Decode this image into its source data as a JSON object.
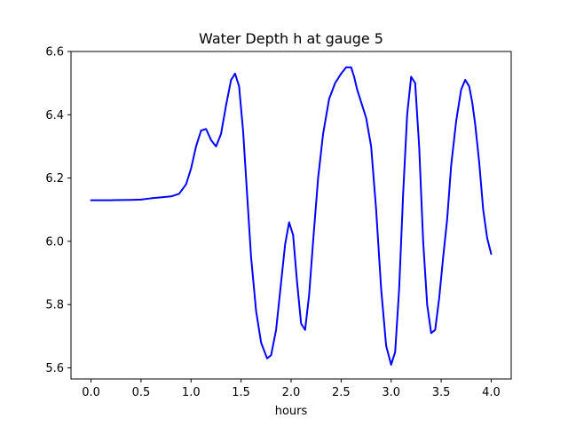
{
  "chart_data": {
    "type": "line",
    "title": "Water Depth h at gauge 5",
    "xlabel": "hours",
    "ylabel": "",
    "xlim": [
      -0.2,
      4.2
    ],
    "ylim": [
      5.565,
      6.6
    ],
    "xticks": [
      0.0,
      0.5,
      1.0,
      1.5,
      2.0,
      2.5,
      3.0,
      3.5,
      4.0
    ],
    "xtick_labels": [
      "0.0",
      "0.5",
      "1.0",
      "1.5",
      "2.0",
      "2.5",
      "3.0",
      "3.5",
      "4.0"
    ],
    "yticks": [
      5.6,
      5.8,
      6.0,
      6.2,
      6.4,
      6.6
    ],
    "ytick_labels": [
      "5.6",
      "5.8",
      "6.0",
      "6.2",
      "6.4",
      "6.6"
    ],
    "grid": false,
    "series": [
      {
        "color": "#0000ff",
        "x": [
          0.0,
          0.2,
          0.4,
          0.5,
          0.6,
          0.7,
          0.8,
          0.88,
          0.95,
          1.0,
          1.05,
          1.1,
          1.15,
          1.2,
          1.25,
          1.3,
          1.35,
          1.4,
          1.44,
          1.48,
          1.52,
          1.56,
          1.6,
          1.65,
          1.7,
          1.76,
          1.8,
          1.85,
          1.9,
          1.94,
          1.98,
          2.02,
          2.06,
          2.1,
          2.14,
          2.18,
          2.22,
          2.27,
          2.32,
          2.38,
          2.44,
          2.5,
          2.55,
          2.6,
          2.63,
          2.66,
          2.7,
          2.75,
          2.8,
          2.85,
          2.9,
          2.95,
          3.0,
          3.04,
          3.08,
          3.12,
          3.16,
          3.2,
          3.24,
          3.28,
          3.32,
          3.36,
          3.4,
          3.44,
          3.48,
          3.52,
          3.56,
          3.6,
          3.65,
          3.7,
          3.74,
          3.78,
          3.81,
          3.84,
          3.88,
          3.92,
          3.96,
          4.0
        ],
        "y": [
          6.13,
          6.13,
          6.131,
          6.132,
          6.136,
          6.139,
          6.142,
          6.15,
          6.18,
          6.23,
          6.3,
          6.35,
          6.355,
          6.32,
          6.3,
          6.34,
          6.43,
          6.51,
          6.53,
          6.49,
          6.35,
          6.15,
          5.95,
          5.78,
          5.68,
          5.63,
          5.64,
          5.72,
          5.87,
          5.99,
          6.06,
          6.02,
          5.87,
          5.74,
          5.72,
          5.83,
          6.0,
          6.2,
          6.34,
          6.45,
          6.5,
          6.53,
          6.55,
          6.55,
          6.52,
          6.48,
          6.44,
          6.39,
          6.3,
          6.1,
          5.85,
          5.67,
          5.61,
          5.65,
          5.85,
          6.15,
          6.4,
          6.52,
          6.5,
          6.3,
          6.0,
          5.8,
          5.71,
          5.72,
          5.82,
          5.95,
          6.07,
          6.24,
          6.38,
          6.48,
          6.51,
          6.49,
          6.44,
          6.37,
          6.25,
          6.1,
          6.01,
          5.96
        ]
      }
    ]
  }
}
